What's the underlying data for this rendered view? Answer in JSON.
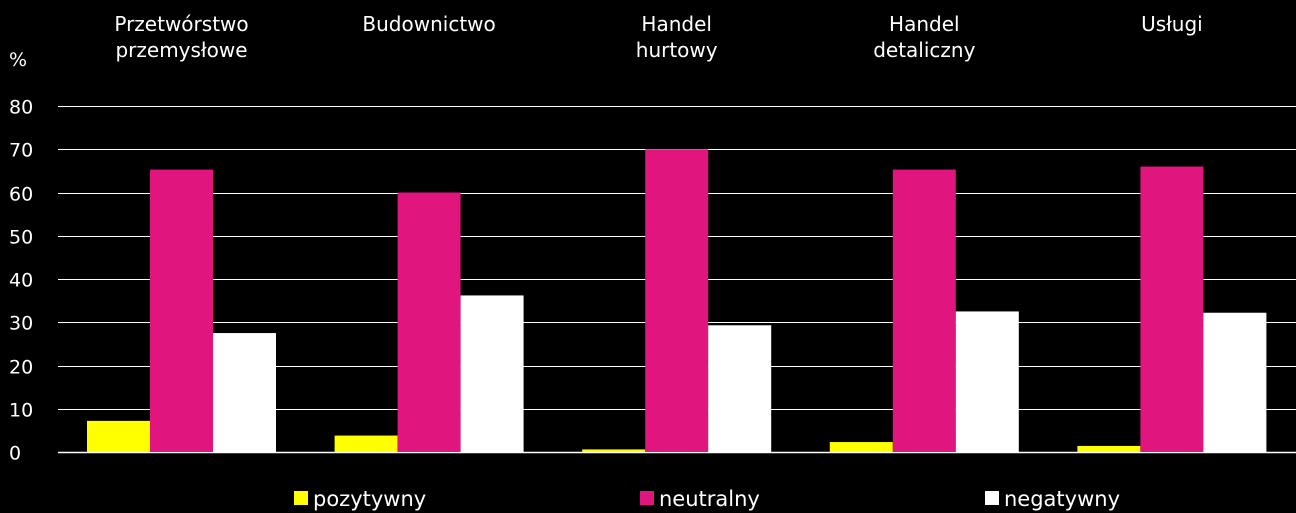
{
  "chart_data": {
    "type": "bar",
    "y_unit_label": "%",
    "ylim": [
      0,
      80
    ],
    "yticks": [
      0,
      10,
      20,
      30,
      40,
      50,
      60,
      70,
      80
    ],
    "grid": true,
    "legend_position": "bottom",
    "categories": [
      [
        "Przetwórstwo",
        "przemysłowe"
      ],
      [
        "Budownictwo"
      ],
      [
        "Handel",
        "hurtowy"
      ],
      [
        "Handel",
        "detaliczny"
      ],
      [
        "Usługi"
      ]
    ],
    "series": [
      {
        "name": "pozytywny",
        "color": "#ffff00",
        "values": [
          7.2,
          3.8,
          0.6,
          2.3,
          1.4
        ]
      },
      {
        "name": "neutralny",
        "color": "#e0157d",
        "values": [
          65.3,
          60,
          70,
          65.3,
          66
        ]
      },
      {
        "name": "negatywny",
        "color": "#ffffff",
        "values": [
          27.5,
          36.2,
          29.3,
          32.5,
          32.2
        ]
      }
    ]
  }
}
